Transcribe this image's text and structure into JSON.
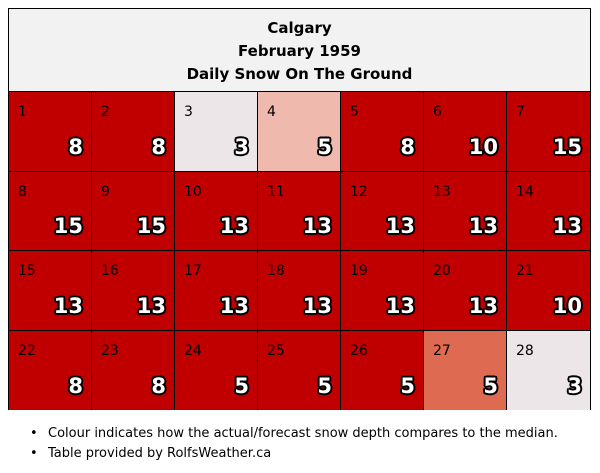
{
  "header": {
    "city": "Calgary",
    "period": "February 1959",
    "subject": "Daily Snow On The Ground"
  },
  "colors": {
    "above_median": "#c00000",
    "median_light": "#ede6e8",
    "slightly_above": "#efb9ae",
    "moderately_above": "#df6a52",
    "border": "#000000"
  },
  "days": [
    {
      "day": "1",
      "value": "8",
      "color": "#c00000"
    },
    {
      "day": "2",
      "value": "8",
      "color": "#c00000"
    },
    {
      "day": "3",
      "value": "3",
      "color": "#ede6e8"
    },
    {
      "day": "4",
      "value": "5",
      "color": "#efb9ae"
    },
    {
      "day": "5",
      "value": "8",
      "color": "#c00000"
    },
    {
      "day": "6",
      "value": "10",
      "color": "#c00000"
    },
    {
      "day": "7",
      "value": "15",
      "color": "#c00000"
    },
    {
      "day": "8",
      "value": "15",
      "color": "#c00000"
    },
    {
      "day": "9",
      "value": "15",
      "color": "#c00000"
    },
    {
      "day": "10",
      "value": "13",
      "color": "#c00000"
    },
    {
      "day": "11",
      "value": "13",
      "color": "#c00000"
    },
    {
      "day": "12",
      "value": "13",
      "color": "#c00000"
    },
    {
      "day": "13",
      "value": "13",
      "color": "#c00000"
    },
    {
      "day": "14",
      "value": "13",
      "color": "#c00000"
    },
    {
      "day": "15",
      "value": "13",
      "color": "#c00000"
    },
    {
      "day": "16",
      "value": "13",
      "color": "#c00000"
    },
    {
      "day": "17",
      "value": "13",
      "color": "#c00000"
    },
    {
      "day": "18",
      "value": "13",
      "color": "#c00000"
    },
    {
      "day": "19",
      "value": "13",
      "color": "#c00000"
    },
    {
      "day": "20",
      "value": "13",
      "color": "#c00000"
    },
    {
      "day": "21",
      "value": "10",
      "color": "#c00000"
    },
    {
      "day": "22",
      "value": "8",
      "color": "#c00000"
    },
    {
      "day": "23",
      "value": "8",
      "color": "#c00000"
    },
    {
      "day": "24",
      "value": "5",
      "color": "#c00000"
    },
    {
      "day": "25",
      "value": "5",
      "color": "#c00000"
    },
    {
      "day": "26",
      "value": "5",
      "color": "#c00000"
    },
    {
      "day": "27",
      "value": "5",
      "color": "#df6a52"
    },
    {
      "day": "28",
      "value": "3",
      "color": "#ede6e8"
    }
  ],
  "notes": [
    "Colour indicates how the actual/forecast snow depth compares to the median.",
    "Table provided by RolfsWeather.ca"
  ]
}
